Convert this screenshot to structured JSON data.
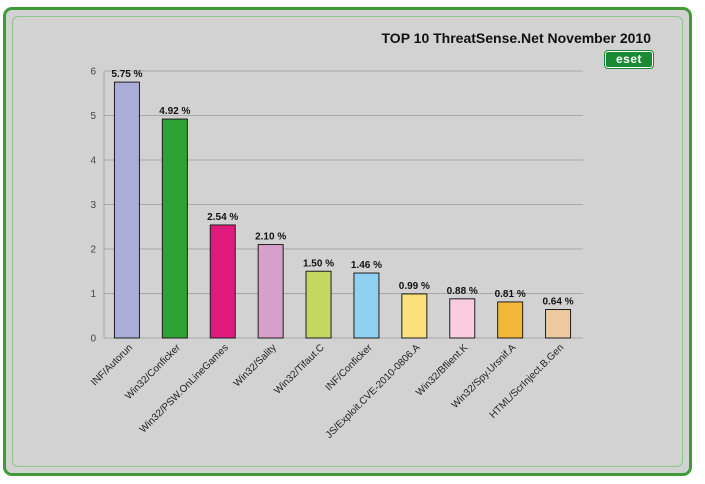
{
  "chart_data": {
    "type": "bar",
    "title": "TOP 10 ThreatSense.Net November 2010",
    "xlabel": "",
    "ylabel": "",
    "ylim": [
      0,
      6
    ],
    "yticks": [
      "0",
      "1",
      "2",
      "3",
      "4",
      "5",
      "6"
    ],
    "grid": true,
    "categories": [
      "INF/Autorun",
      "Win32/Conficker",
      "Win32/PSW.OnLineGames",
      "Win32/Sality",
      "Win32/Tifaut.C",
      "INF/Conficker",
      "JS/Exploit.CVE-2010-0806.A",
      "Win32/Bflient.K",
      "Win32/Spy.Ursnif.A",
      "HTML/ScrInject.B.Gen"
    ],
    "values": [
      5.75,
      4.92,
      2.54,
      2.1,
      1.5,
      1.46,
      0.99,
      0.88,
      0.81,
      0.64
    ],
    "value_labels": [
      "5.75 %",
      "4.92 %",
      "2.54 %",
      "2.10 %",
      "1.50 %",
      "1.46 %",
      "0.99 %",
      "0.88 %",
      "0.81 %",
      "0.64 %"
    ],
    "colors": [
      "#a9add8",
      "#2ea233",
      "#df1a7d",
      "#d7a0cb",
      "#c4d763",
      "#8fd1ef",
      "#fce07a",
      "#f9cce0",
      "#f2b839",
      "#edc9a0"
    ]
  },
  "logo_text": "eset"
}
